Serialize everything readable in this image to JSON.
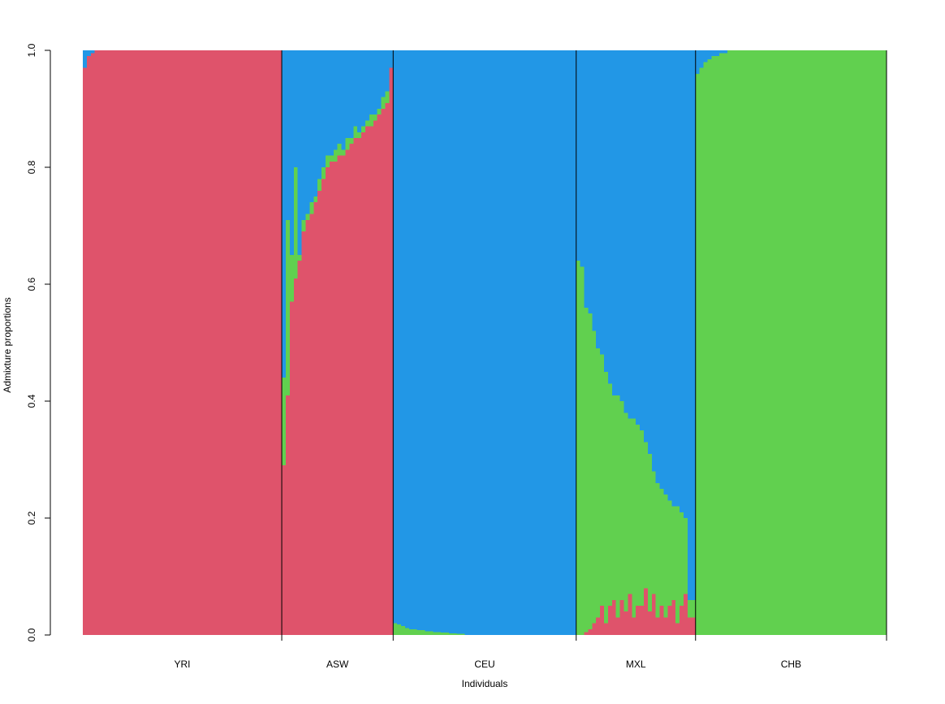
{
  "chart_data": {
    "type": "bar",
    "stacked": true,
    "x_label": "Individuals",
    "y_label": "Admixture proportions",
    "ylim": [
      0,
      1
    ],
    "yticks": [
      {
        "value": 0,
        "label": "0.0"
      },
      {
        "value": 0.2,
        "label": "0.2"
      },
      {
        "value": 0.4,
        "label": "0.4"
      },
      {
        "value": 0.6,
        "label": "0.6"
      },
      {
        "value": 0.8,
        "label": "0.8"
      },
      {
        "value": 1,
        "label": "1.0"
      }
    ],
    "groups": [
      {
        "label": "YRI",
        "size": 50
      },
      {
        "label": "ASW",
        "size": 28
      },
      {
        "label": "CEU",
        "size": 46
      },
      {
        "label": "MXL",
        "size": 30
      },
      {
        "label": "CHB",
        "size": 48
      }
    ],
    "series": [
      {
        "color": "#DF536B",
        "values": [
          0.97,
          0.99,
          0.995,
          1,
          1,
          1,
          1,
          1,
          1,
          1,
          1,
          1,
          1,
          1,
          1,
          1,
          1,
          1,
          1,
          1,
          1,
          1,
          1,
          1,
          1,
          1,
          1,
          1,
          1,
          1,
          1,
          1,
          1,
          1,
          1,
          1,
          1,
          1,
          1,
          1,
          1,
          1,
          1,
          1,
          1,
          1,
          1,
          1,
          1,
          1,
          0.29,
          0.41,
          0.57,
          0.61,
          0.64,
          0.69,
          0.71,
          0.72,
          0.74,
          0.76,
          0.78,
          0.8,
          0.81,
          0.81,
          0.82,
          0.82,
          0.83,
          0.84,
          0.85,
          0.85,
          0.86,
          0.87,
          0.87,
          0.88,
          0.89,
          0.9,
          0.91,
          0.97,
          0,
          0,
          0,
          0,
          0,
          0,
          0,
          0,
          0,
          0,
          0,
          0,
          0,
          0,
          0,
          0,
          0,
          0,
          0,
          0,
          0,
          0,
          0,
          0,
          0,
          0,
          0,
          0,
          0,
          0,
          0,
          0,
          0,
          0,
          0,
          0,
          0,
          0,
          0,
          0,
          0,
          0,
          0,
          0,
          0,
          0,
          0,
          0,
          0.005,
          0.01,
          0.02,
          0.03,
          0.05,
          0.02,
          0.05,
          0.06,
          0.03,
          0.06,
          0.04,
          0.07,
          0.03,
          0.05,
          0.05,
          0.08,
          0.04,
          0.07,
          0.03,
          0.05,
          0.03,
          0.05,
          0.06,
          0.02,
          0.05,
          0.07,
          0.03,
          0.03,
          0,
          0,
          0,
          0,
          0,
          0,
          0,
          0,
          0,
          0,
          0,
          0,
          0,
          0,
          0,
          0,
          0,
          0,
          0,
          0,
          0,
          0,
          0,
          0,
          0,
          0,
          0,
          0,
          0,
          0,
          0,
          0,
          0,
          0,
          0,
          0,
          0,
          0,
          0,
          0,
          0,
          0,
          0,
          0,
          0,
          0,
          0,
          0
        ]
      },
      {
        "color": "#61D04F",
        "values": [
          0,
          0,
          0,
          0,
          0,
          0,
          0,
          0,
          0,
          0,
          0,
          0,
          0,
          0,
          0,
          0,
          0,
          0,
          0,
          0,
          0,
          0,
          0,
          0,
          0,
          0,
          0,
          0,
          0,
          0,
          0,
          0,
          0,
          0,
          0,
          0,
          0,
          0,
          0,
          0,
          0,
          0,
          0,
          0,
          0,
          0,
          0,
          0,
          0,
          0,
          0.15,
          0.3,
          0.08,
          0.19,
          0.01,
          0.02,
          0.01,
          0.02,
          0.01,
          0.02,
          0.02,
          0.02,
          0.01,
          0.02,
          0.02,
          0.01,
          0.02,
          0.01,
          0.02,
          0.01,
          0.01,
          0.01,
          0.02,
          0.01,
          0.01,
          0.02,
          0.02,
          0,
          0.02,
          0.018,
          0.015,
          0.012,
          0.01,
          0.01,
          0.008,
          0.008,
          0.006,
          0.006,
          0.005,
          0.005,
          0.004,
          0.004,
          0.003,
          0.003,
          0.002,
          0.002,
          0,
          0,
          0,
          0,
          0,
          0,
          0,
          0,
          0,
          0,
          0,
          0,
          0,
          0,
          0,
          0,
          0,
          0,
          0,
          0,
          0,
          0,
          0,
          0,
          0,
          0,
          0,
          0,
          0.64,
          0.63,
          0.555,
          0.54,
          0.5,
          0.46,
          0.43,
          0.43,
          0.38,
          0.35,
          0.38,
          0.34,
          0.34,
          0.3,
          0.34,
          0.31,
          0.3,
          0.25,
          0.27,
          0.21,
          0.23,
          0.2,
          0.21,
          0.18,
          0.16,
          0.2,
          0.16,
          0.13,
          0.03,
          0.03,
          0.96,
          0.97,
          0.98,
          0.985,
          0.99,
          0.99,
          0.995,
          0.995,
          1,
          1,
          1,
          1,
          1,
          1,
          1,
          1,
          1,
          1,
          1,
          1,
          1,
          1,
          1,
          1,
          1,
          1,
          1,
          1,
          1,
          1,
          1,
          1,
          1,
          1,
          1,
          1,
          1,
          1,
          1,
          1,
          1,
          1,
          1,
          1,
          1,
          1,
          1,
          1
        ]
      },
      {
        "color": "#2297E6",
        "values": [
          0.03,
          0.01,
          0.005,
          0,
          0,
          0,
          0,
          0,
          0,
          0,
          0,
          0,
          0,
          0,
          0,
          0,
          0,
          0,
          0,
          0,
          0,
          0,
          0,
          0,
          0,
          0,
          0,
          0,
          0,
          0,
          0,
          0,
          0,
          0,
          0,
          0,
          0,
          0,
          0,
          0,
          0,
          0,
          0,
          0,
          0,
          0,
          0,
          0,
          0,
          0,
          0.56,
          0.29,
          0.35,
          0.2,
          0.35,
          0.29,
          0.28,
          0.26,
          0.25,
          0.22,
          0.2,
          0.18,
          0.18,
          0.17,
          0.16,
          0.17,
          0.15,
          0.15,
          0.13,
          0.14,
          0.13,
          0.12,
          0.11,
          0.11,
          0.1,
          0.08,
          0.07,
          0.03,
          0.98,
          0.982,
          0.985,
          0.988,
          0.99,
          0.99,
          0.992,
          0.992,
          0.994,
          0.994,
          0.995,
          0.995,
          0.996,
          0.996,
          0.997,
          0.997,
          0.998,
          0.998,
          1,
          1,
          1,
          1,
          1,
          1,
          1,
          1,
          1,
          1,
          1,
          1,
          1,
          1,
          1,
          1,
          1,
          1,
          1,
          1,
          1,
          1,
          1,
          1,
          1,
          1,
          1,
          1,
          0.36,
          0.37,
          0.44,
          0.45,
          0.48,
          0.51,
          0.52,
          0.55,
          0.57,
          0.59,
          0.59,
          0.6,
          0.62,
          0.63,
          0.63,
          0.64,
          0.65,
          0.67,
          0.69,
          0.72,
          0.74,
          0.75,
          0.76,
          0.77,
          0.78,
          0.78,
          0.79,
          0.8,
          0.94,
          0.94,
          0.04,
          0.03,
          0.02,
          0.015,
          0.01,
          0.01,
          0.005,
          0.005,
          0,
          0,
          0,
          0,
          0,
          0,
          0,
          0,
          0,
          0,
          0,
          0,
          0,
          0,
          0,
          0,
          0,
          0,
          0,
          0,
          0,
          0,
          0,
          0,
          0,
          0,
          0,
          0,
          0,
          0,
          0,
          0,
          0,
          0,
          0,
          0,
          0,
          0,
          0,
          0
        ]
      }
    ]
  }
}
